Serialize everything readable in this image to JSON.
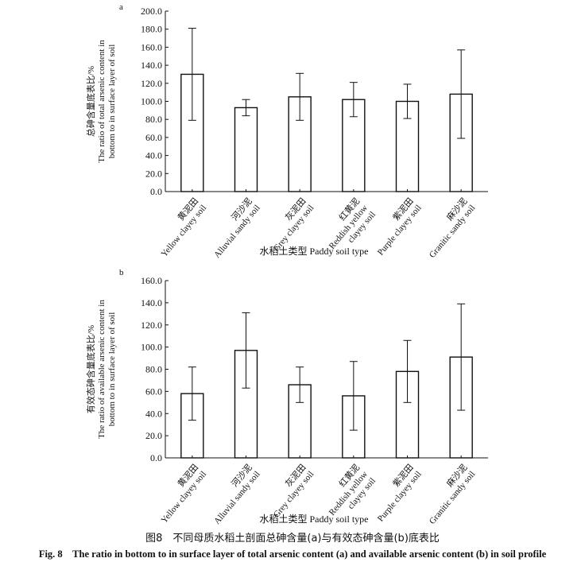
{
  "caption_cn": "图8　不同母质水稻土剖面总砷含量(a)与有效态砷含量(b)底表比",
  "caption_en": "Fig. 8　The ratio in bottom to in surface layer of total arsenic content (a) and available arsenic content (b) in soil profile",
  "chart_data": [
    {
      "type": "bar",
      "panel_label": "a",
      "categories": [
        {
          "cn": "黄泥田",
          "en": [
            "Yellow clayey soil"
          ]
        },
        {
          "cn": "河沙泥",
          "en": [
            "Alluvial sandy soil"
          ]
        },
        {
          "cn": "灰泥田",
          "en": [
            "Grey clayey soil"
          ]
        },
        {
          "cn": "红黄泥",
          "en": [
            "Reddish yellow",
            "clayey soil"
          ]
        },
        {
          "cn": "紫泥田",
          "en": [
            "Purple clayey soil"
          ]
        },
        {
          "cn": "麻沙泥",
          "en": [
            "Granitic sandy soil"
          ]
        }
      ],
      "values": [
        130,
        93,
        105,
        102,
        100,
        108
      ],
      "error": [
        51,
        9,
        26,
        19,
        19,
        49
      ],
      "ylim": [
        0,
        200
      ],
      "ytick_step": 20,
      "ytick_labels": [
        "0.0",
        "20.0",
        "40.0",
        "60.0",
        "80.0",
        "100.0",
        "120.0",
        "140.0",
        "160.0",
        "180.0",
        "200.0"
      ],
      "ylabel": [
        "总砷含量底表比/%",
        "The ratio of total arsenic content in",
        "bottom to in surface layer of soil"
      ],
      "xlabel": "水稻土类型 Paddy soil type"
    },
    {
      "type": "bar",
      "panel_label": "b",
      "categories": [
        {
          "cn": "黄泥田",
          "en": [
            "Yellow clayey soil"
          ]
        },
        {
          "cn": "河沙泥",
          "en": [
            "Alluvial sandy soil"
          ]
        },
        {
          "cn": "灰泥田",
          "en": [
            "Grey clayey soil"
          ]
        },
        {
          "cn": "红黄泥",
          "en": [
            "Reddish yellow",
            "clayey soil"
          ]
        },
        {
          "cn": "紫泥田",
          "en": [
            "Purple clayey soil"
          ]
        },
        {
          "cn": "麻沙泥",
          "en": [
            "Granitic sandy soil"
          ]
        }
      ],
      "values": [
        58,
        97,
        66,
        56,
        78,
        91
      ],
      "error": [
        24,
        34,
        16,
        31,
        28,
        48
      ],
      "ylim": [
        0,
        160
      ],
      "ytick_step": 20,
      "ytick_labels": [
        "0.0",
        "20.0",
        "40.0",
        "60.0",
        "80.0",
        "100.0",
        "120.0",
        "140.0",
        "160.0"
      ],
      "ylabel": [
        "有效态砷含量底表比/%",
        "The ratio of available arsenic content in",
        "bottom to in surface layer of soil"
      ],
      "xlabel": "水稻土类型 Paddy soil type"
    }
  ]
}
